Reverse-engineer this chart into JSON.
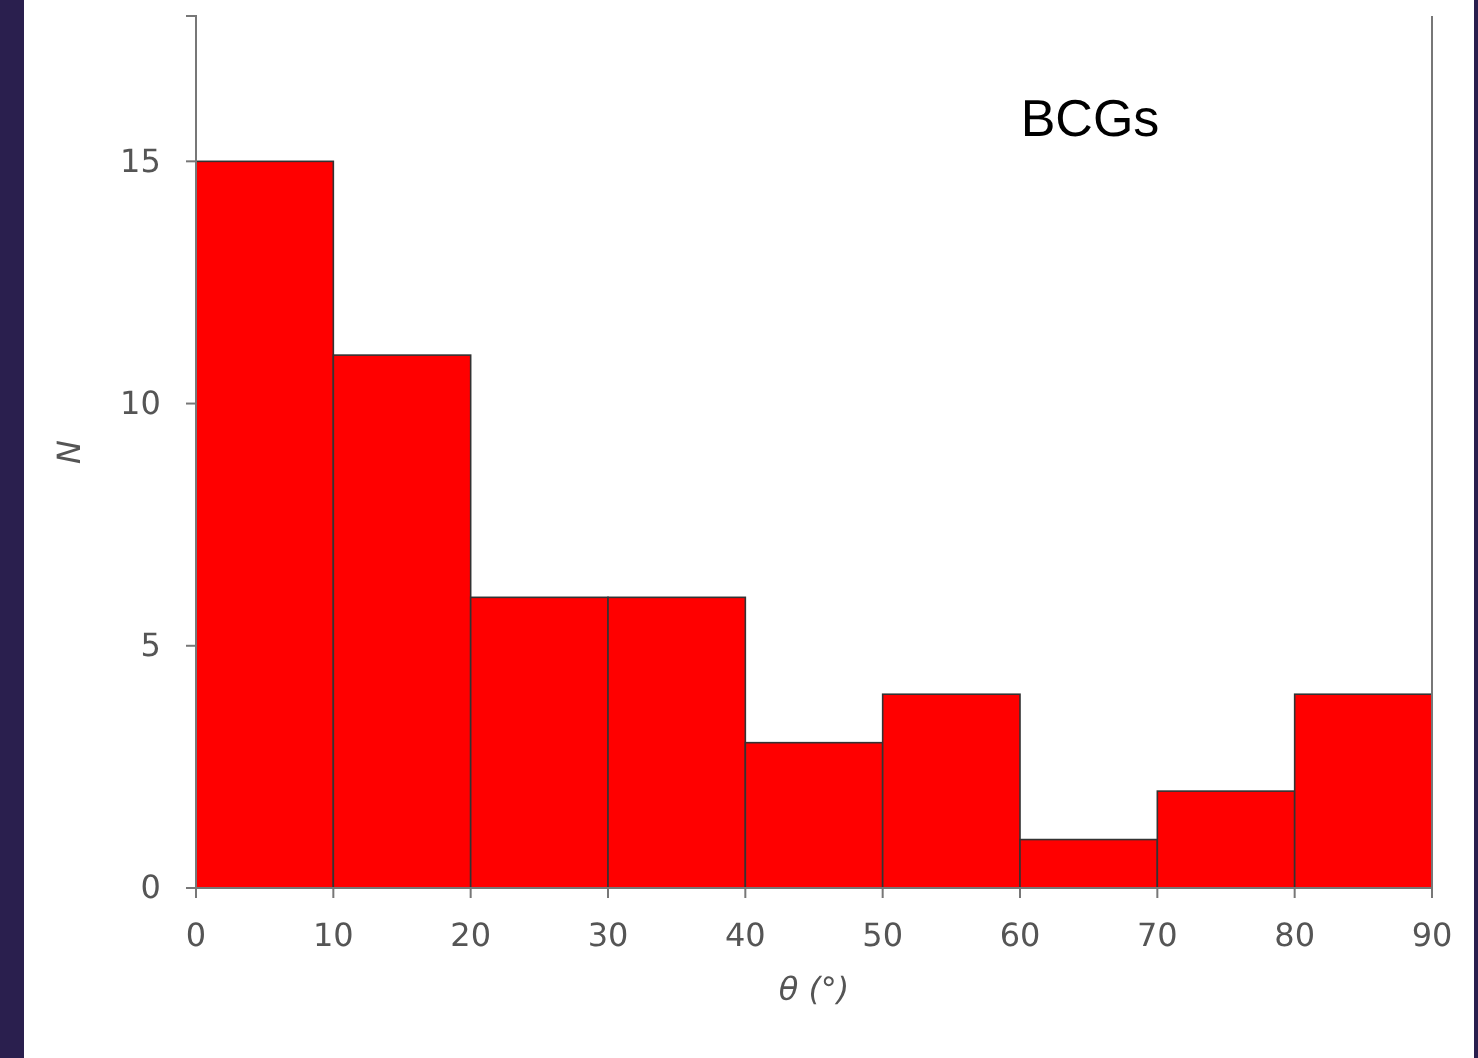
{
  "chart_data": {
    "type": "histogram",
    "xlabel": "θ (°)",
    "ylabel": "N",
    "annotations": [
      "BCGs"
    ],
    "bins": [
      0,
      10,
      20,
      30,
      40,
      50,
      60,
      70,
      80,
      90
    ],
    "values": [
      15,
      11,
      6,
      6,
      3,
      4,
      1,
      2,
      4
    ],
    "color": "#ff0000",
    "xlim": [
      0,
      90
    ],
    "xticks": [
      0,
      10,
      20,
      30,
      40,
      50,
      60,
      70,
      80,
      90
    ],
    "ylim": [
      0,
      18
    ],
    "yticks": [
      0,
      5,
      10,
      15
    ],
    "grid": false
  }
}
